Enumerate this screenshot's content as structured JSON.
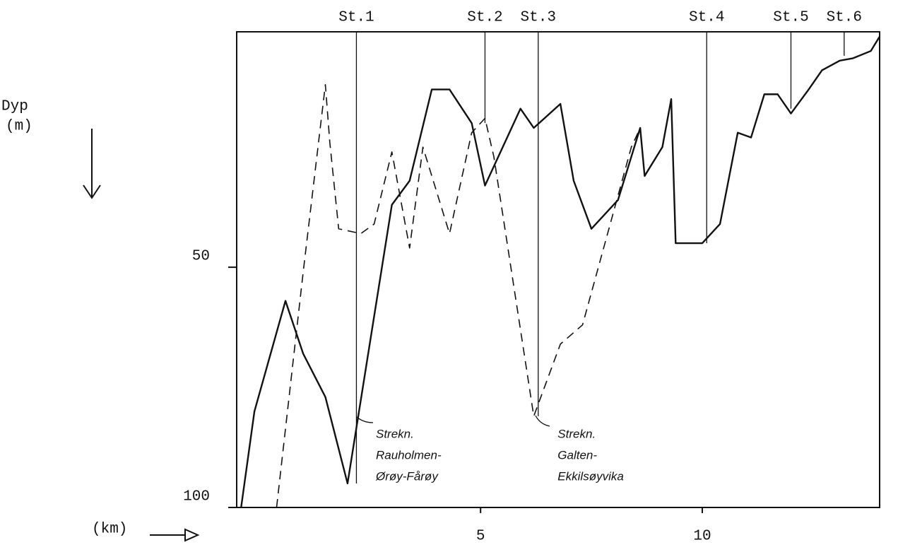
{
  "chart_data": {
    "type": "line",
    "y_label": [
      "Dyp",
      "(m)"
    ],
    "x_label": "(km)",
    "xlim": [
      -0.5,
      14
    ],
    "xticks": [
      5,
      10
    ],
    "ylim": [
      1,
      100
    ],
    "yticks": [
      50,
      100
    ],
    "y_inverted": true,
    "stations": [
      {
        "label": "St.1",
        "x": 2.2,
        "to": 95
      },
      {
        "label": "St.2",
        "x": 5.1,
        "to": 20
      },
      {
        "label": "St.3",
        "x": 6.3,
        "to": 81
      },
      {
        "label": "St.4",
        "x": 10.1,
        "to": 45
      },
      {
        "label": "St.5",
        "x": 12.0,
        "to": 17
      },
      {
        "label": "St.6",
        "x": 13.2,
        "to": 6
      }
    ],
    "series": [
      {
        "color": "#111",
        "dash": "solid",
        "x": [
          -0.4,
          -0.1,
          0.6,
          1.0,
          1.5,
          2.0,
          3.0,
          3.4,
          3.9,
          4.3,
          4.8,
          5.1,
          5.9,
          6.2,
          6.8,
          7.1,
          7.5,
          8.1,
          8.6,
          8.7,
          9.1,
          9.3,
          9.4,
          10.0,
          10.4,
          10.8,
          11.1,
          11.4,
          11.7,
          12.0,
          12.4,
          12.7,
          13.1,
          13.4,
          13.8,
          14.0
        ],
        "values": [
          100,
          80,
          57,
          68,
          77,
          95,
          37,
          32,
          13,
          13,
          20,
          33,
          17,
          21,
          16,
          32,
          42,
          36,
          21,
          31,
          25,
          15,
          45,
          45,
          41,
          22,
          23,
          14,
          14,
          18,
          13,
          9,
          7,
          6.5,
          5,
          2
        ]
      },
      {
        "color": "#111",
        "dash": "dashed",
        "x": [
          0.4,
          1.0,
          1.5,
          1.6,
          1.8,
          2.3,
          2.6,
          3.0,
          3.4,
          3.7,
          4.3,
          4.8,
          5.1,
          5.3,
          6.2,
          6.8,
          7.3,
          8.4,
          8.6
        ],
        "values": [
          100,
          51,
          12,
          24,
          42,
          43,
          41,
          26,
          46,
          25,
          43,
          22,
          19,
          27,
          81,
          66,
          62,
          25,
          21
        ]
      }
    ],
    "annotations": [
      {
        "lines": [
          "Strekn.",
          "Rauholmen-",
          "Ørøy-Fårøy"
        ],
        "x": 2.4,
        "y": 84
      },
      {
        "lines": [
          "Strekn.",
          "Galten-",
          "Ekkilsøyvika"
        ],
        "x": 6.5,
        "y": 84
      }
    ]
  }
}
